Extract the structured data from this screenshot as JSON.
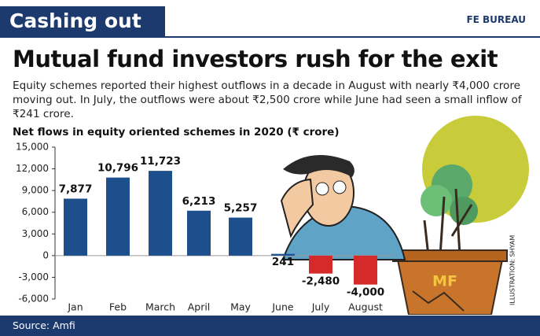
{
  "header": {
    "section": "Cashing out",
    "byline": "FE BUREAU"
  },
  "headline": "Mutual fund investors rush for the exit",
  "description": "Equity schemes reported their highest outflows in a decade in August with nearly ₹4,000 crore moving out. In July, the outflows were about ₹2,500 crore while June had seen a small inflow of ₹241 crore.",
  "chart_data": {
    "type": "bar",
    "title": "Net flows in equity oriented schemes in 2020 (₹ crore)",
    "categories": [
      "Jan",
      "Feb",
      "March",
      "April",
      "May",
      "June",
      "July",
      "August"
    ],
    "values": [
      7877,
      10796,
      11723,
      6213,
      5257,
      241,
      -2480,
      -4000
    ],
    "value_labels": [
      "7,877",
      "10,796",
      "11,723",
      "6,213",
      "5,257",
      "241",
      "-2,480",
      "-4,000"
    ],
    "colors": [
      "#1d4f8c",
      "#1d4f8c",
      "#1d4f8c",
      "#1d4f8c",
      "#1d4f8c",
      "#1d4f8c",
      "#d62a2a",
      "#d62a2a"
    ],
    "ylim": [
      -6000,
      15000
    ],
    "yticks": [
      {
        "value": -6000,
        "label": "-6,000"
      },
      {
        "value": -3000,
        "label": "-3,000"
      },
      0,
      {
        "value": 3000,
        "label": "3,000"
      },
      {
        "value": 6000,
        "label": "6,000"
      },
      {
        "value": 9000,
        "label": "9,000"
      },
      {
        "value": 12000,
        "label": "12,000"
      },
      {
        "value": 15000,
        "label": "15,000"
      }
    ],
    "grid": false
  },
  "illustration": {
    "pot_label": "MF",
    "credit": "ILLUSTRATION: SHYAM"
  },
  "source": "Source: Amfi"
}
